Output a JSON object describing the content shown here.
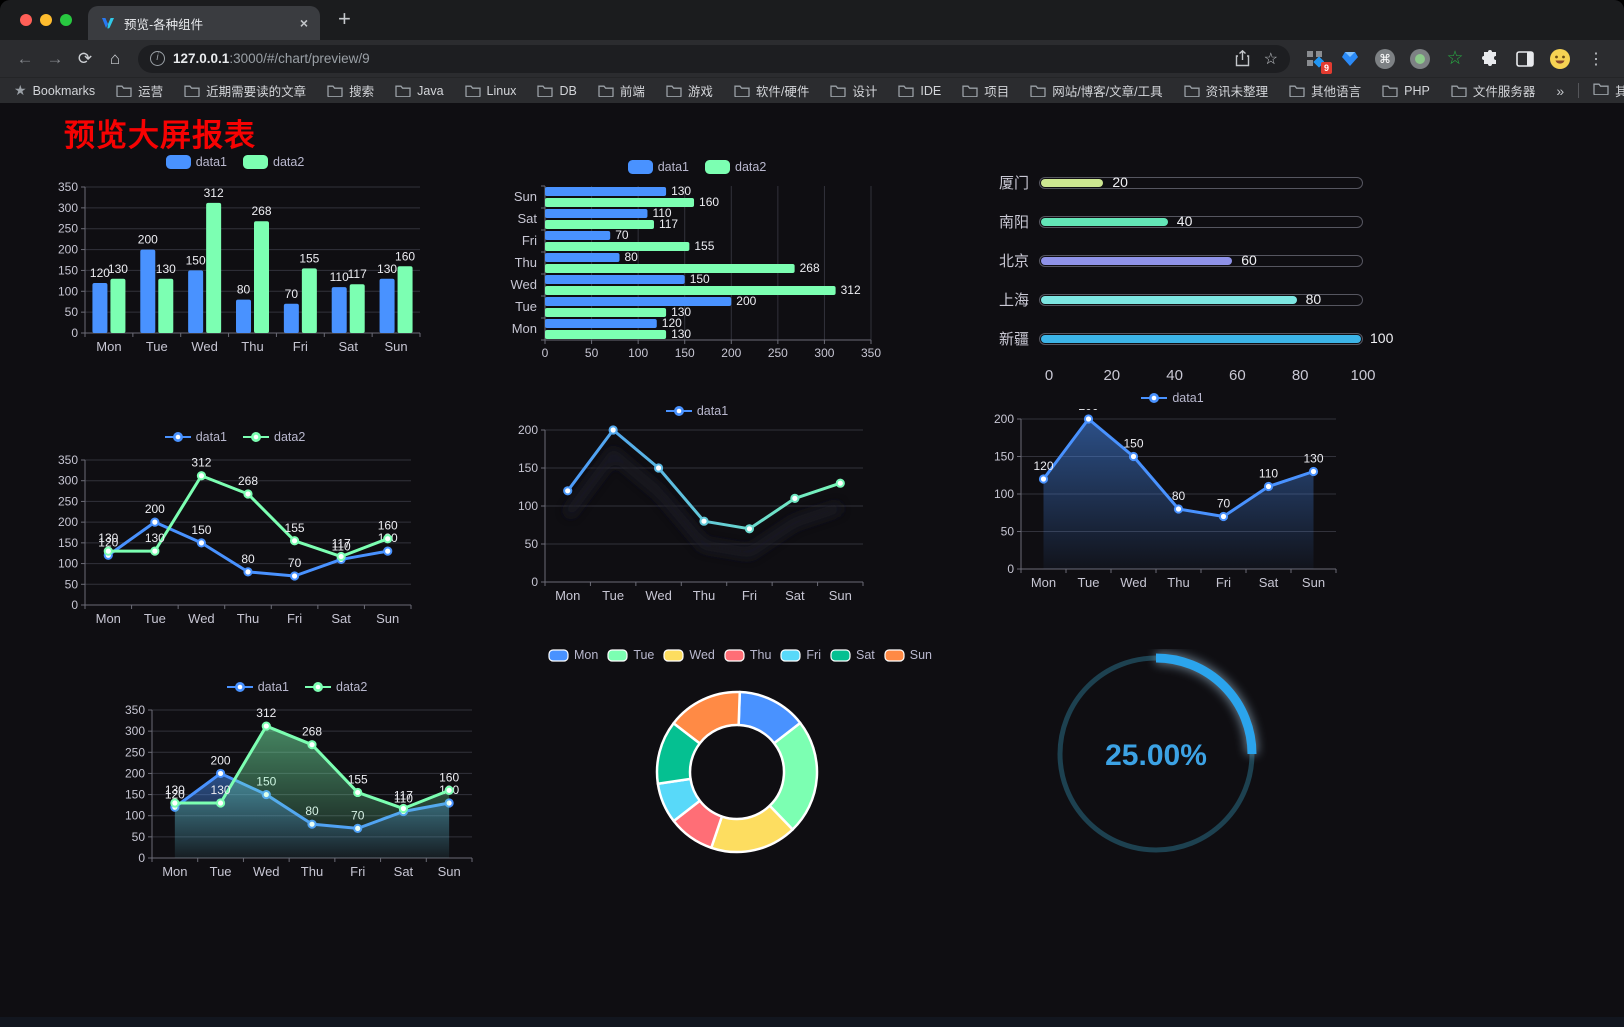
{
  "browser": {
    "tab": {
      "title": "预览-各种组件",
      "close": "×",
      "new_tab": "+"
    },
    "nav": {
      "back": "←",
      "forward": "→",
      "reload": "⟳",
      "home": "⌂"
    },
    "url": {
      "host": "127.0.0.1",
      "rest": ":3000/#/chart/preview/9"
    },
    "extensions_badge": "9",
    "menu_dots": "⋮",
    "bookmarks_bar": {
      "label": "Bookmarks",
      "folders": [
        "运营",
        "近期需要读的文章",
        "搜索",
        "Java",
        "Linux",
        "DB",
        "前端",
        "游戏",
        "软件/硬件",
        "设计",
        "IDE",
        "项目",
        "网站/博客/文章/工具",
        "资讯未整理",
        "其他语言",
        "PHP",
        "文件服务器"
      ],
      "overflow": "»",
      "other": "其他书签"
    }
  },
  "page": {
    "title": "预览大屏报表"
  },
  "chart_data": [
    {
      "id": "bar-vertical",
      "type": "bar",
      "orientation": "vertical",
      "categories": [
        "Mon",
        "Tue",
        "Wed",
        "Thu",
        "Fri",
        "Sat",
        "Sun"
      ],
      "series": [
        {
          "name": "data1",
          "color": "#4992ff",
          "values": [
            120,
            200,
            150,
            80,
            70,
            110,
            130
          ]
        },
        {
          "name": "data2",
          "color": "#7cffb2",
          "values": [
            130,
            130,
            312,
            268,
            155,
            117,
            160
          ]
        }
      ],
      "ylim": [
        0,
        350
      ],
      "ytick": 50,
      "show_labels": true,
      "legend": "top",
      "grid": true
    },
    {
      "id": "bar-horizontal",
      "type": "bar",
      "orientation": "horizontal",
      "categories": [
        "Mon",
        "Tue",
        "Wed",
        "Thu",
        "Fri",
        "Sat",
        "Sun"
      ],
      "series": [
        {
          "name": "data1",
          "color": "#4992ff",
          "values": [
            120,
            200,
            150,
            80,
            70,
            110,
            130
          ]
        },
        {
          "name": "data2",
          "color": "#7cffb2",
          "values": [
            130,
            130,
            312,
            268,
            155,
            117,
            160
          ]
        }
      ],
      "xlim": [
        0,
        350
      ],
      "xtick": 50,
      "show_labels": true,
      "legend": "top",
      "grid": true
    },
    {
      "id": "progress-bars",
      "type": "bar",
      "orientation": "progress",
      "items": [
        {
          "label": "厦门",
          "value": 20,
          "color": "#cde791"
        },
        {
          "label": "南阳",
          "value": 40,
          "color": "#63e6b7"
        },
        {
          "label": "北京",
          "value": 60,
          "color": "#8f92e8"
        },
        {
          "label": "上海",
          "value": 80,
          "color": "#7de6e2"
        },
        {
          "label": "新疆",
          "value": 100,
          "color": "#3cb4e7"
        }
      ],
      "xlim": [
        0,
        100
      ],
      "ticks": [
        0,
        20,
        40,
        60,
        80,
        100
      ]
    },
    {
      "id": "line-two-series",
      "type": "line",
      "categories": [
        "Mon",
        "Tue",
        "Wed",
        "Thu",
        "Fri",
        "Sat",
        "Sun"
      ],
      "series": [
        {
          "name": "data1",
          "color": "#4992ff",
          "values": [
            120,
            200,
            150,
            80,
            70,
            110,
            130
          ]
        },
        {
          "name": "data2",
          "color": "#7cffb2",
          "values": [
            130,
            130,
            312,
            268,
            155,
            117,
            160
          ]
        }
      ],
      "ylim": [
        0,
        350
      ],
      "ytick": 50,
      "show_labels": true,
      "legend": "top",
      "grid": true
    },
    {
      "id": "line-gradient-shadow",
      "type": "line",
      "gradient": true,
      "shadow": true,
      "categories": [
        "Mon",
        "Tue",
        "Wed",
        "Thu",
        "Fri",
        "Sat",
        "Sun"
      ],
      "series": [
        {
          "name": "data1",
          "color": "#4992ff",
          "color2": "#7cffb2",
          "values": [
            120,
            200,
            150,
            80,
            70,
            110,
            130
          ]
        }
      ],
      "ylim": [
        0,
        200
      ],
      "ytick": 50,
      "show_labels": false,
      "legend": "top",
      "grid": true
    },
    {
      "id": "line-area-single",
      "type": "line",
      "area": true,
      "categories": [
        "Mon",
        "Tue",
        "Wed",
        "Thu",
        "Fri",
        "Sat",
        "Sun"
      ],
      "series": [
        {
          "name": "data1",
          "color": "#4992ff",
          "values": [
            120,
            200,
            150,
            80,
            70,
            110,
            130
          ]
        }
      ],
      "ylim": [
        0,
        200
      ],
      "ytick": 50,
      "show_labels": true,
      "legend": "top",
      "grid": true
    },
    {
      "id": "line-area-two-series",
      "type": "line",
      "area": true,
      "categories": [
        "Mon",
        "Tue",
        "Wed",
        "Thu",
        "Fri",
        "Sat",
        "Sun"
      ],
      "series": [
        {
          "name": "data1",
          "color": "#4992ff",
          "values": [
            120,
            200,
            150,
            80,
            70,
            110,
            130
          ]
        },
        {
          "name": "data2",
          "color": "#7cffb2",
          "values": [
            130,
            130,
            312,
            268,
            155,
            117,
            160
          ]
        }
      ],
      "ylim": [
        0,
        350
      ],
      "ytick": 50,
      "show_labels": true,
      "legend": "top",
      "grid": true
    },
    {
      "id": "donut",
      "type": "pie",
      "inner_radius_ratio": 0.59,
      "legend": "top",
      "categories": [
        "Mon",
        "Tue",
        "Wed",
        "Thu",
        "Fri",
        "Sat",
        "Sun"
      ],
      "values": [
        120,
        200,
        150,
        80,
        70,
        110,
        130
      ],
      "colors": [
        "#4992ff",
        "#7cffb2",
        "#fddd60",
        "#ff6e76",
        "#58d9f9",
        "#05c091",
        "#ff8a45"
      ],
      "border_color": "#ffffff"
    },
    {
      "id": "gauge",
      "type": "gauge",
      "value": 25,
      "max": 100,
      "label": "25.00%",
      "color": "#2ba4ec",
      "track_color": "#1d4150",
      "text_color": "#3ca2e4"
    }
  ]
}
